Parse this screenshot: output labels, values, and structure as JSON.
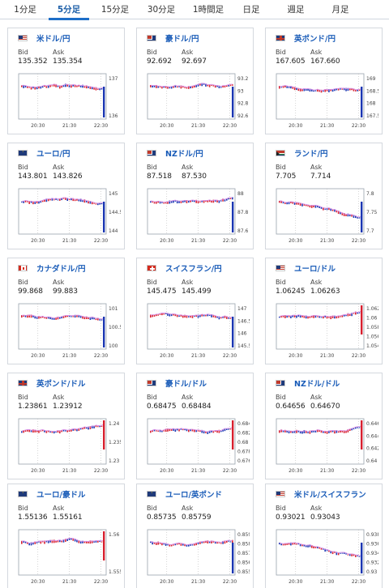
{
  "tabs": [
    {
      "label": "1分足",
      "active": false
    },
    {
      "label": "5分足",
      "active": true
    },
    {
      "label": "15分足",
      "active": false
    },
    {
      "label": "30分足",
      "active": false
    },
    {
      "label": "1時間足",
      "active": false
    },
    {
      "label": "日足",
      "active": false
    },
    {
      "label": "週足",
      "active": false
    },
    {
      "label": "月足",
      "active": false
    }
  ],
  "labels": {
    "bid": "Bid",
    "ask": "Ask"
  },
  "time_ticks": [
    "20:30",
    "21:30",
    "22:30"
  ],
  "colors": {
    "up": "#d8202f",
    "down": "#1b37b3",
    "ma": "#d78fe6",
    "link": "#1a5cb8",
    "active_tab": "#1d6ec8"
  },
  "cards": [
    {
      "pair": "米ドル/円",
      "flag": "us",
      "bid": "135.352",
      "ask": "135.354",
      "yticks": [
        "137",
        "136"
      ],
      "trend": "flatdown",
      "spike": "down"
    },
    {
      "pair": "豪ドル/円",
      "flag": "au",
      "bid": "92.692",
      "ask": "92.697",
      "yticks": [
        "93.2",
        "93",
        "92.8",
        "92.6"
      ],
      "trend": "mixed",
      "spike": "down"
    },
    {
      "pair": "英ポンド/円",
      "flag": "gb",
      "bid": "167.605",
      "ask": "167.660",
      "yticks": [
        "169",
        "168.5",
        "168",
        "167.5"
      ],
      "trend": "flatdown",
      "spike": "down"
    },
    {
      "pair": "ユーロ/円",
      "flag": "eu",
      "bid": "143.801",
      "ask": "143.826",
      "yticks": [
        "145",
        "144.5",
        "144"
      ],
      "trend": "flatdown",
      "spike": "down"
    },
    {
      "pair": "NZドル/円",
      "flag": "nz",
      "bid": "87.518",
      "ask": "87.530",
      "yticks": [
        "88",
        "87.8",
        "87.6"
      ],
      "trend": "mixed",
      "spike": "down"
    },
    {
      "pair": "ランド/円",
      "flag": "za",
      "bid": "7.705",
      "ask": "7.714",
      "yticks": [
        "7.8",
        "7.75",
        "7.7"
      ],
      "trend": "down",
      "spike": "down"
    },
    {
      "pair": "カナダドル/円",
      "flag": "ca",
      "bid": "99.868",
      "ask": "99.883",
      "yticks": [
        "101",
        "100.5",
        "100"
      ],
      "trend": "flatdown",
      "spike": "down"
    },
    {
      "pair": "スイスフラン/円",
      "flag": "ch",
      "bid": "145.475",
      "ask": "145.499",
      "yticks": [
        "147",
        "146.5",
        "146",
        "145.5"
      ],
      "trend": "flatdown",
      "spike": "down"
    },
    {
      "pair": "ユーロ/ドル",
      "flag": "us",
      "bid": "1.06245",
      "ask": "1.06263",
      "yticks": [
        "1.062",
        "1.06",
        "1.058",
        "1.056",
        "1.054"
      ],
      "trend": "flatup",
      "spike": "up"
    },
    {
      "pair": "英ポンド/ドル",
      "flag": "gb",
      "bid": "1.23861",
      "ask": "1.23912",
      "yticks": [
        "1.24",
        "1.235",
        "1.23"
      ],
      "trend": "flatup",
      "spike": "up"
    },
    {
      "pair": "豪ドル/ドル",
      "flag": "au",
      "bid": "0.68475",
      "ask": "0.68484",
      "yticks": [
        "0.684",
        "0.682",
        "0.68",
        "0.678",
        "0.676"
      ],
      "trend": "flatup",
      "spike": "up"
    },
    {
      "pair": "NZドル/ドル",
      "flag": "nz",
      "bid": "0.64656",
      "ask": "0.64670",
      "yticks": [
        "0.646",
        "0.644",
        "0.642",
        "0.64"
      ],
      "trend": "flatup",
      "spike": "up"
    },
    {
      "pair": "ユーロ/豪ドル",
      "flag": "eu",
      "bid": "1.55136",
      "ask": "1.55161",
      "yticks": [
        "1.56",
        "1.555"
      ],
      "trend": "mixed",
      "spike": "up"
    },
    {
      "pair": "ユーロ/英ポンド",
      "flag": "eu",
      "bid": "0.85735",
      "ask": "0.85759",
      "yticks": [
        "0.859",
        "0.858",
        "0.857",
        "0.856",
        "0.855"
      ],
      "trend": "mixed",
      "spike": "down"
    },
    {
      "pair": "米ドル/スイスフラン",
      "flag": "us",
      "bid": "0.93021",
      "ask": "0.93043",
      "yticks": [
        "0.938",
        "0.936",
        "0.934",
        "0.932",
        "0.93"
      ],
      "trend": "down",
      "spike": "down"
    }
  ]
}
